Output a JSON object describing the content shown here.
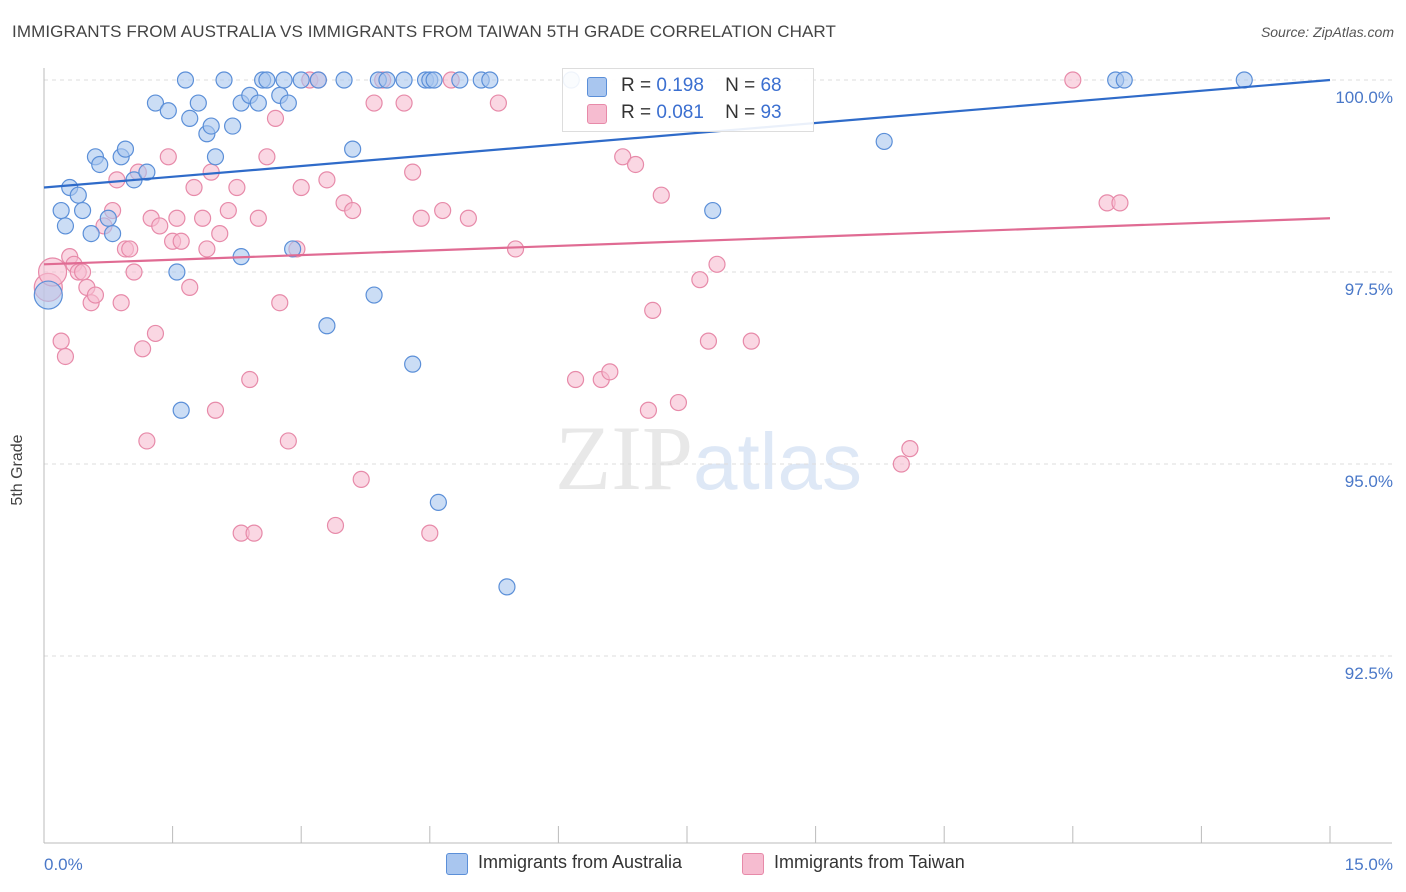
{
  "title": "IMMIGRANTS FROM AUSTRALIA VS IMMIGRANTS FROM TAIWAN 5TH GRADE CORRELATION CHART",
  "source": "Source: ZipAtlas.com",
  "watermark": {
    "zip": "ZIP",
    "atlas": "atlas"
  },
  "colors": {
    "blue_fill": "#a9c6ef",
    "blue_stroke": "#5b8fd8",
    "blue_line": "#2f6bc9",
    "pink_fill": "#f6bcd0",
    "pink_stroke": "#e78aa9",
    "pink_line": "#e06b93",
    "label_blue": "#3b6fd0"
  },
  "legend": {
    "rows": [
      {
        "r_label": "R =",
        "r_value": "0.198",
        "n_label": "N =",
        "n_value": "68"
      },
      {
        "r_label": "R =",
        "r_value": "0.081",
        "n_label": "N =",
        "n_value": "93"
      }
    ]
  },
  "chart_data": {
    "type": "scatter",
    "title": "IMMIGRANTS FROM AUSTRALIA VS IMMIGRANTS FROM TAIWAN 5TH GRADE CORRELATION CHART",
    "xlabel": "",
    "ylabel": "5th Grade",
    "xlim": [
      0,
      15
    ],
    "ylim": [
      90.2,
      100.2
    ],
    "x_tick_labels": [
      {
        "value": 0,
        "label": "0.0%"
      },
      {
        "value": 15,
        "label": "15.0%"
      }
    ],
    "y_tick_labels": [
      {
        "value": 100.0,
        "label": "100.0%"
      },
      {
        "value": 97.5,
        "label": "97.5%"
      },
      {
        "value": 95.0,
        "label": "95.0%"
      },
      {
        "value": 92.5,
        "label": "92.5%"
      }
    ],
    "series": [
      {
        "name": "Immigrants from Australia",
        "color": "#5b8fd8",
        "trend": {
          "x": [
            0,
            15
          ],
          "y": [
            98.6,
            100.0
          ]
        },
        "points": [
          [
            0.05,
            97.2
          ],
          [
            0.2,
            98.3
          ],
          [
            0.25,
            98.1
          ],
          [
            0.3,
            98.6
          ],
          [
            0.4,
            98.5
          ],
          [
            0.45,
            98.3
          ],
          [
            0.55,
            98.0
          ],
          [
            0.6,
            99.0
          ],
          [
            0.65,
            98.9
          ],
          [
            0.75,
            98.2
          ],
          [
            0.8,
            98.0
          ],
          [
            0.9,
            99.0
          ],
          [
            0.95,
            99.1
          ],
          [
            1.05,
            98.7
          ],
          [
            1.2,
            98.8
          ],
          [
            1.3,
            99.7
          ],
          [
            1.45,
            99.6
          ],
          [
            1.55,
            97.5
          ],
          [
            1.6,
            95.7
          ],
          [
            1.65,
            100.0
          ],
          [
            1.7,
            99.5
          ],
          [
            1.8,
            99.7
          ],
          [
            1.9,
            99.3
          ],
          [
            1.95,
            99.4
          ],
          [
            2.0,
            99.0
          ],
          [
            2.1,
            100.0
          ],
          [
            2.2,
            99.4
          ],
          [
            2.3,
            99.7
          ],
          [
            2.3,
            97.7
          ],
          [
            2.4,
            99.8
          ],
          [
            2.5,
            99.7
          ],
          [
            2.55,
            100.0
          ],
          [
            2.6,
            100.0
          ],
          [
            2.75,
            99.8
          ],
          [
            2.8,
            100.0
          ],
          [
            2.85,
            99.7
          ],
          [
            2.9,
            97.8
          ],
          [
            3.0,
            100.0
          ],
          [
            3.2,
            100.0
          ],
          [
            3.3,
            96.8
          ],
          [
            3.5,
            100.0
          ],
          [
            3.6,
            99.1
          ],
          [
            3.85,
            97.2
          ],
          [
            3.9,
            100.0
          ],
          [
            4.0,
            100.0
          ],
          [
            4.2,
            100.0
          ],
          [
            4.3,
            96.3
          ],
          [
            4.45,
            100.0
          ],
          [
            4.5,
            100.0
          ],
          [
            4.55,
            100.0
          ],
          [
            4.6,
            94.5
          ],
          [
            4.85,
            100.0
          ],
          [
            5.1,
            100.0
          ],
          [
            5.2,
            100.0
          ],
          [
            5.4,
            93.4
          ],
          [
            6.15,
            100.0
          ],
          [
            7.8,
            98.3
          ],
          [
            9.8,
            99.2
          ],
          [
            12.5,
            100.0
          ],
          [
            12.6,
            100.0
          ],
          [
            14.0,
            100.0
          ]
        ]
      },
      {
        "name": "Immigrants from Taiwan",
        "color": "#e78aa9",
        "trend": {
          "x": [
            0,
            15
          ],
          "y": [
            97.6,
            98.2
          ]
        },
        "points": [
          [
            0.05,
            97.3
          ],
          [
            0.1,
            97.5
          ],
          [
            0.2,
            96.6
          ],
          [
            0.25,
            96.4
          ],
          [
            0.3,
            97.7
          ],
          [
            0.35,
            97.6
          ],
          [
            0.4,
            97.5
          ],
          [
            0.45,
            97.5
          ],
          [
            0.5,
            97.3
          ],
          [
            0.55,
            97.1
          ],
          [
            0.6,
            97.2
          ],
          [
            0.7,
            98.1
          ],
          [
            0.8,
            98.3
          ],
          [
            0.85,
            98.7
          ],
          [
            0.9,
            97.1
          ],
          [
            0.95,
            97.8
          ],
          [
            1.0,
            97.8
          ],
          [
            1.05,
            97.5
          ],
          [
            1.1,
            98.8
          ],
          [
            1.15,
            96.5
          ],
          [
            1.2,
            95.3
          ],
          [
            1.25,
            98.2
          ],
          [
            1.3,
            96.7
          ],
          [
            1.35,
            98.1
          ],
          [
            1.45,
            99.0
          ],
          [
            1.5,
            97.9
          ],
          [
            1.55,
            98.2
          ],
          [
            1.6,
            97.9
          ],
          [
            1.7,
            97.3
          ],
          [
            1.75,
            98.6
          ],
          [
            1.85,
            98.2
          ],
          [
            1.9,
            97.8
          ],
          [
            1.95,
            98.8
          ],
          [
            2.0,
            95.7
          ],
          [
            2.05,
            98.0
          ],
          [
            2.15,
            98.3
          ],
          [
            2.25,
            98.6
          ],
          [
            2.3,
            94.1
          ],
          [
            2.4,
            96.1
          ],
          [
            2.45,
            94.1
          ],
          [
            2.5,
            98.2
          ],
          [
            2.6,
            99.0
          ],
          [
            2.7,
            99.5
          ],
          [
            2.75,
            97.1
          ],
          [
            2.85,
            95.3
          ],
          [
            2.95,
            97.8
          ],
          [
            3.0,
            98.6
          ],
          [
            3.1,
            100.0
          ],
          [
            3.2,
            100.0
          ],
          [
            3.3,
            98.7
          ],
          [
            3.4,
            94.2
          ],
          [
            3.5,
            98.4
          ],
          [
            3.6,
            98.3
          ],
          [
            3.7,
            94.8
          ],
          [
            3.85,
            99.7
          ],
          [
            3.95,
            100.0
          ],
          [
            4.2,
            99.7
          ],
          [
            4.3,
            98.8
          ],
          [
            4.4,
            98.2
          ],
          [
            4.5,
            94.1
          ],
          [
            4.65,
            98.3
          ],
          [
            4.75,
            100.0
          ],
          [
            4.95,
            98.2
          ],
          [
            5.3,
            99.7
          ],
          [
            5.5,
            97.8
          ],
          [
            6.2,
            96.1
          ],
          [
            6.5,
            96.1
          ],
          [
            6.6,
            96.2
          ],
          [
            6.75,
            99.0
          ],
          [
            6.9,
            98.9
          ],
          [
            7.05,
            95.7
          ],
          [
            7.1,
            97.0
          ],
          [
            7.2,
            98.5
          ],
          [
            7.4,
            95.8
          ],
          [
            7.65,
            97.4
          ],
          [
            7.75,
            96.6
          ],
          [
            7.85,
            97.6
          ],
          [
            8.25,
            96.6
          ],
          [
            10.0,
            95.0
          ],
          [
            10.1,
            95.2
          ],
          [
            12.0,
            100.0
          ],
          [
            12.4,
            98.4
          ],
          [
            12.55,
            98.4
          ]
        ]
      }
    ]
  },
  "bottom_legend": [
    "Immigrants from Australia",
    "Immigrants from Taiwan"
  ]
}
